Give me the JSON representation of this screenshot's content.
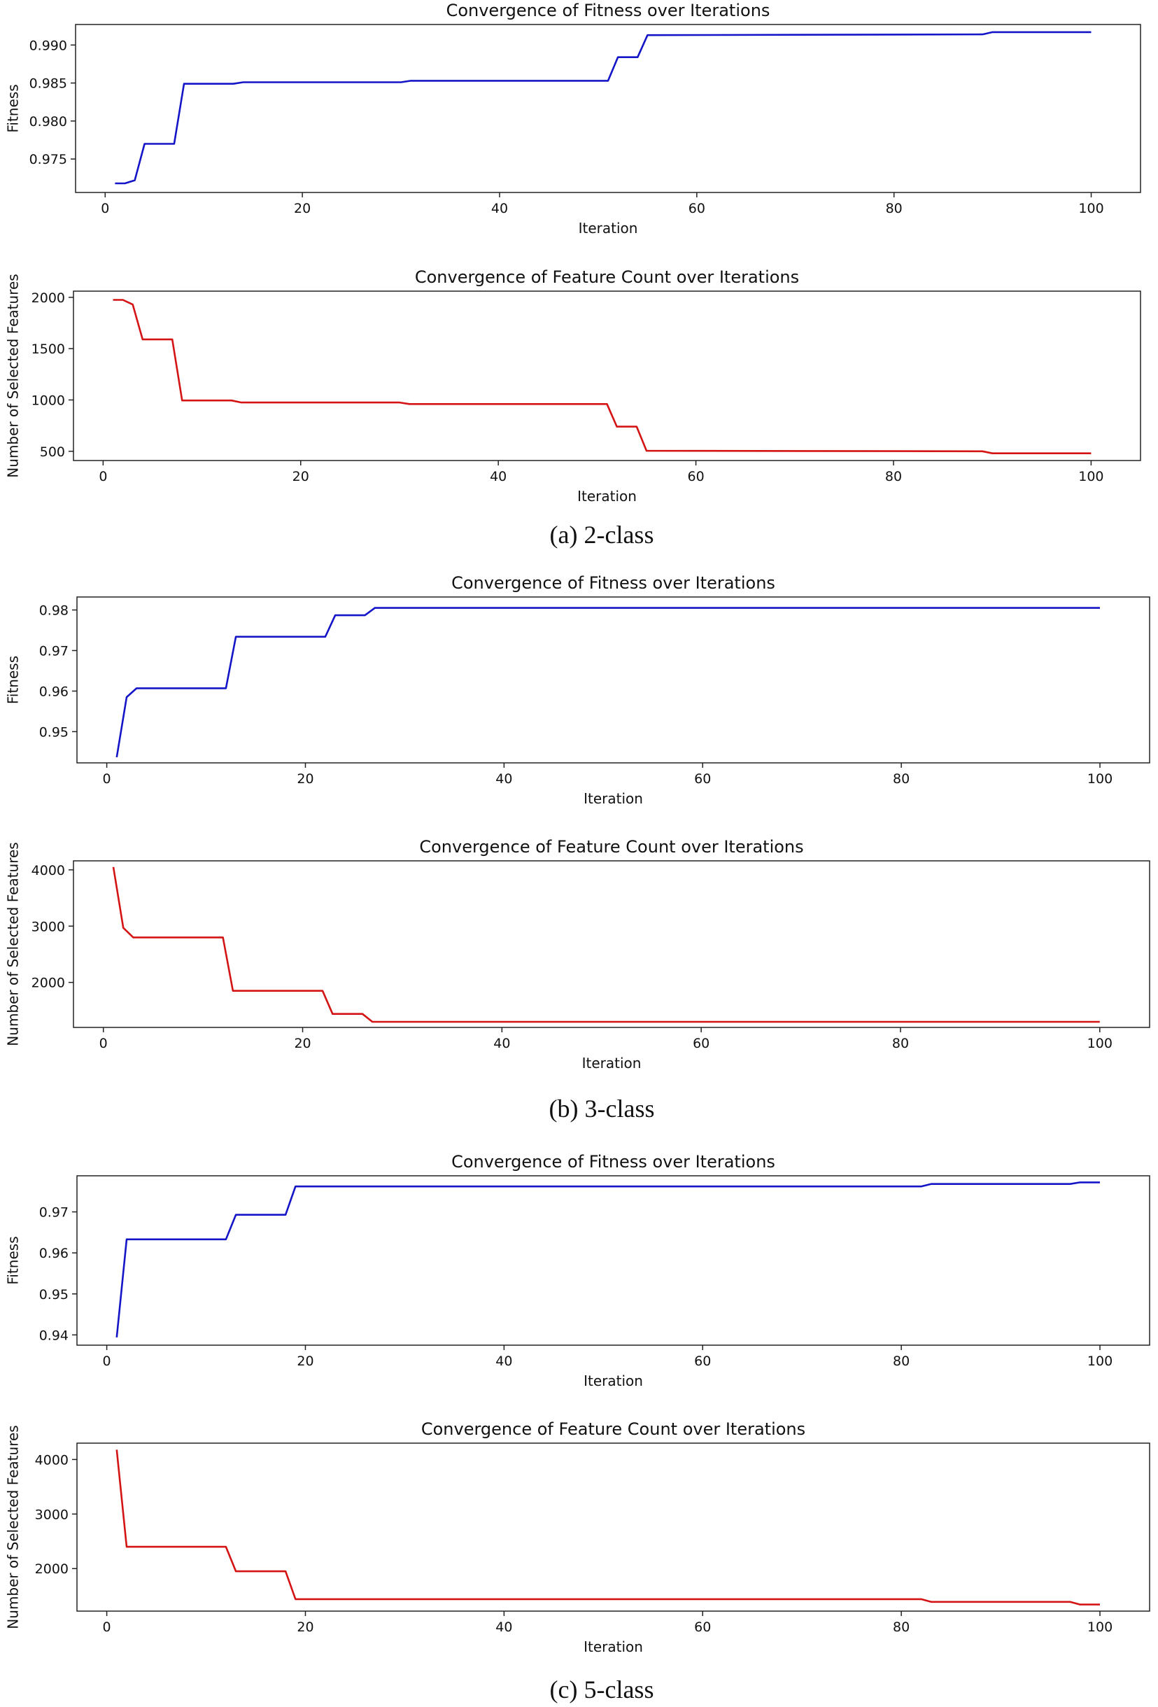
{
  "figure": {
    "captions": [
      "(a) 2-class",
      "(b) 3-class",
      "(c) 5-class"
    ]
  },
  "colors": {
    "fitness": "#1515c8",
    "features": "#d41414"
  },
  "chart_data": [
    {
      "type": "line",
      "title": "Convergence of Fitness over Iterations",
      "xlabel": "Iteration",
      "ylabel": "Fitness",
      "xlim": [
        -3,
        105
      ],
      "ylim": [
        0.9706,
        0.9927
      ],
      "xticks": [
        0,
        20,
        40,
        60,
        80,
        100
      ],
      "yticks": [
        0.975,
        0.98,
        0.985,
        0.99
      ],
      "ytick_labels": [
        "0.975",
        "0.980",
        "0.985",
        "0.990"
      ],
      "series": [
        {
          "name": "Fitness",
          "color": "#1515c8",
          "x": [
            1,
            2,
            3,
            4,
            7,
            8,
            13,
            14,
            30,
            31,
            51,
            52,
            54,
            55,
            89,
            90,
            100
          ],
          "y": [
            0.9718,
            0.9718,
            0.9722,
            0.977,
            0.977,
            0.9849,
            0.9849,
            0.9851,
            0.9851,
            0.9853,
            0.9853,
            0.9884,
            0.9884,
            0.9913,
            0.9914,
            0.9917,
            0.9917
          ]
        }
      ]
    },
    {
      "type": "line",
      "title": "Convergence of Feature Count over Iterations",
      "xlabel": "Iteration",
      "ylabel": "Number of Selected Features",
      "xlim": [
        -3,
        105
      ],
      "ylim": [
        410,
        2060
      ],
      "xticks": [
        0,
        20,
        40,
        60,
        80,
        100
      ],
      "yticks": [
        500,
        1000,
        1500,
        2000
      ],
      "ytick_labels": [
        "500",
        "1000",
        "1500",
        "2000"
      ],
      "series": [
        {
          "name": "Number of Selected Features",
          "color": "#d41414",
          "x": [
            1,
            2,
            3,
            4,
            7,
            8,
            13,
            14,
            30,
            31,
            51,
            52,
            54,
            55,
            89,
            90,
            100
          ],
          "y": [
            1975,
            1975,
            1930,
            1590,
            1590,
            995,
            995,
            975,
            975,
            960,
            960,
            740,
            740,
            505,
            500,
            480,
            480
          ]
        }
      ]
    },
    {
      "type": "line",
      "title": "Convergence of Fitness over Iterations",
      "xlabel": "Iteration",
      "ylabel": "Fitness",
      "xlim": [
        -3,
        105
      ],
      "ylim": [
        0.9423,
        0.9832
      ],
      "xticks": [
        0,
        20,
        40,
        60,
        80,
        100
      ],
      "yticks": [
        0.95,
        0.96,
        0.97,
        0.98
      ],
      "ytick_labels": [
        "0.95",
        "0.96",
        "0.97",
        "0.98"
      ],
      "series": [
        {
          "name": "Fitness",
          "color": "#1515c8",
          "x": [
            1,
            2,
            3,
            12,
            13,
            22,
            23,
            26,
            27,
            100
          ],
          "y": [
            0.9437,
            0.9585,
            0.9607,
            0.9607,
            0.9734,
            0.9734,
            0.9787,
            0.9787,
            0.9805,
            0.9805
          ]
        }
      ]
    },
    {
      "type": "line",
      "title": "Convergence of Feature Count over Iterations",
      "xlabel": "Iteration",
      "ylabel": "Number of Selected Features",
      "xlim": [
        -3,
        105
      ],
      "ylim": [
        1200,
        4160
      ],
      "xticks": [
        0,
        20,
        40,
        60,
        80,
        100
      ],
      "yticks": [
        2000,
        3000,
        4000
      ],
      "ytick_labels": [
        "2000",
        "3000",
        "4000"
      ],
      "series": [
        {
          "name": "Number of Selected Features",
          "color": "#d41414",
          "x": [
            1,
            2,
            3,
            12,
            13,
            22,
            23,
            26,
            27,
            100
          ],
          "y": [
            4050,
            2970,
            2800,
            2800,
            1850,
            1850,
            1440,
            1440,
            1300,
            1300
          ]
        }
      ]
    },
    {
      "type": "line",
      "title": "Convergence of Fitness over Iterations",
      "xlabel": "Iteration",
      "ylabel": "Fitness",
      "xlim": [
        -3,
        105
      ],
      "ylim": [
        0.9375,
        0.9788
      ],
      "xticks": [
        0,
        20,
        40,
        60,
        80,
        100
      ],
      "yticks": [
        0.94,
        0.95,
        0.96,
        0.97
      ],
      "ytick_labels": [
        "0.94",
        "0.95",
        "0.96",
        "0.97"
      ],
      "series": [
        {
          "name": "Fitness",
          "color": "#1515c8",
          "x": [
            1,
            2,
            12,
            13,
            18,
            19,
            82,
            83,
            97,
            98,
            100
          ],
          "y": [
            0.9394,
            0.9633,
            0.9633,
            0.9693,
            0.9693,
            0.9762,
            0.9762,
            0.9768,
            0.9768,
            0.9772,
            0.9772
          ]
        }
      ]
    },
    {
      "type": "line",
      "title": "Convergence of Feature Count over Iterations",
      "xlabel": "Iteration",
      "ylabel": "Number of Selected Features",
      "xlim": [
        -3,
        105
      ],
      "ylim": [
        1220,
        4300
      ],
      "xticks": [
        0,
        20,
        40,
        60,
        80,
        100
      ],
      "yticks": [
        2000,
        3000,
        4000
      ],
      "ytick_labels": [
        "2000",
        "3000",
        "4000"
      ],
      "series": [
        {
          "name": "Number of Selected Features",
          "color": "#d41414",
          "x": [
            1,
            2,
            12,
            13,
            18,
            19,
            82,
            83,
            97,
            98,
            100
          ],
          "y": [
            4180,
            2400,
            2400,
            1950,
            1950,
            1440,
            1440,
            1390,
            1390,
            1340,
            1340
          ]
        }
      ]
    }
  ]
}
